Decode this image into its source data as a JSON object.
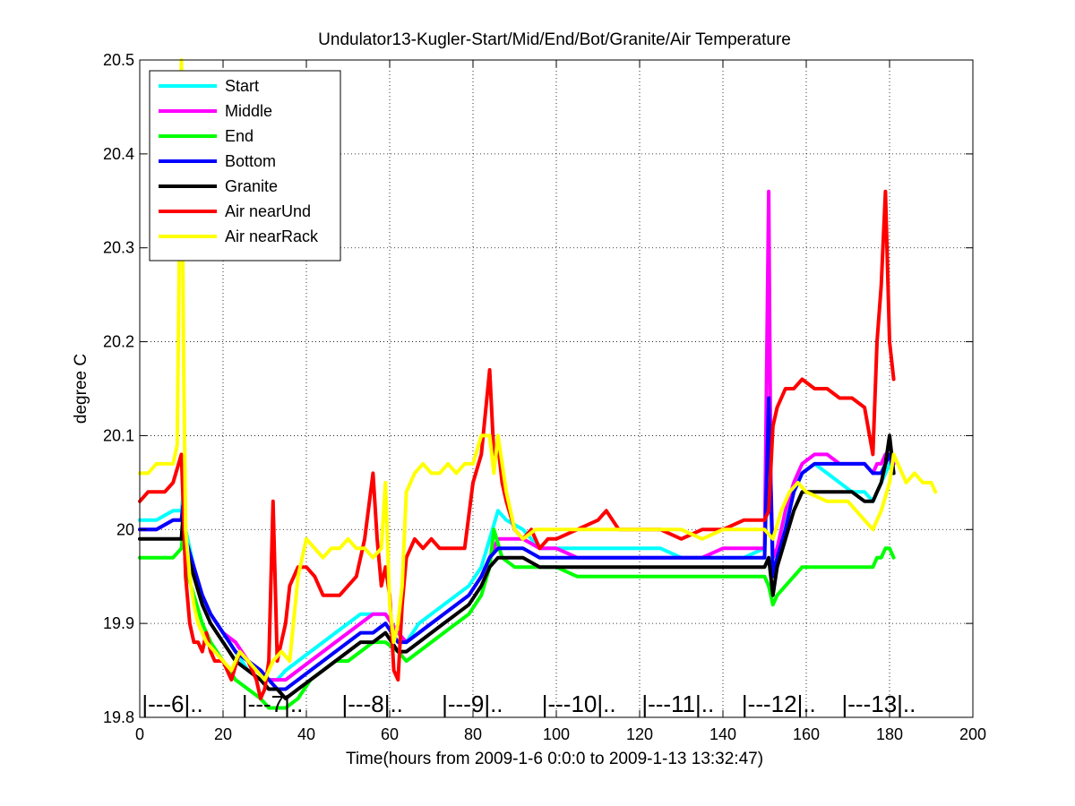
{
  "chart_data": {
    "type": "line",
    "title": "Undulator13-Kugler-Start/Mid/End/Bot/Granite/Air Temperature",
    "xlabel": "Time(hours from 2009-1-6 0:0:0 to 2009-1-13 13:32:47)",
    "ylabel": "degree C",
    "xlim": [
      0,
      200
    ],
    "ylim": [
      19.8,
      20.5
    ],
    "xticks": [
      "0",
      "20",
      "40",
      "60",
      "80",
      "100",
      "120",
      "140",
      "160",
      "180",
      "200"
    ],
    "yticks": [
      "19.8",
      "19.9",
      "20",
      "20.1",
      "20.2",
      "20.3",
      "20.4",
      "20.5"
    ],
    "grid": true,
    "legend_position": "top-left",
    "day_markers": [
      {
        "x": 0.5,
        "text": "|---6|.."
      },
      {
        "x": 24.5,
        "text": "|---7|.."
      },
      {
        "x": 48.5,
        "text": "|---8|.."
      },
      {
        "x": 72.5,
        "text": "|---9|.."
      },
      {
        "x": 96.5,
        "text": "|---10|.."
      },
      {
        "x": 120.5,
        "text": "|---11|.."
      },
      {
        "x": 144.5,
        "text": "|---12|.."
      },
      {
        "x": 168.5,
        "text": "|---13|.."
      }
    ],
    "series": [
      {
        "name": "Start",
        "color": "#00ffff",
        "x": [
          0,
          4,
          8,
          10,
          10.5,
          11,
          13,
          15,
          17,
          20,
          23,
          26,
          29,
          31,
          33,
          35,
          38,
          41,
          44,
          47,
          50,
          53,
          56,
          59,
          62,
          64,
          67,
          70,
          73,
          76,
          79,
          82,
          84,
          86,
          88,
          92,
          96,
          100,
          105,
          110,
          115,
          120,
          125,
          130,
          135,
          140,
          145,
          150,
          151,
          152,
          153,
          155,
          157,
          159,
          162,
          165,
          168,
          171,
          174,
          176,
          177,
          178,
          179,
          180,
          181
        ],
        "y": [
          20.01,
          20.01,
          20.02,
          20.02,
          20.04,
          20.0,
          19.96,
          19.93,
          19.91,
          19.89,
          19.87,
          19.85,
          19.84,
          19.84,
          19.84,
          19.85,
          19.86,
          19.87,
          19.88,
          19.89,
          19.9,
          19.91,
          19.91,
          19.91,
          19.89,
          19.88,
          19.9,
          19.91,
          19.92,
          19.93,
          19.94,
          19.96,
          19.99,
          20.02,
          20.01,
          20.0,
          19.98,
          19.98,
          19.98,
          19.98,
          19.98,
          19.98,
          19.98,
          19.97,
          19.97,
          19.97,
          19.97,
          19.98,
          20.1,
          19.97,
          19.98,
          20.01,
          20.04,
          20.06,
          20.07,
          20.06,
          20.05,
          20.04,
          20.04,
          20.03,
          20.04,
          20.05,
          20.06,
          20.07,
          20.06
        ]
      },
      {
        "name": "Middle",
        "color": "#ff00ff",
        "x": [
          0,
          4,
          8,
          10,
          10.5,
          11,
          13,
          15,
          17,
          20,
          23,
          26,
          29,
          31,
          33,
          35,
          38,
          41,
          44,
          47,
          50,
          53,
          56,
          59,
          62,
          64,
          67,
          70,
          73,
          76,
          79,
          82,
          84,
          86,
          88,
          92,
          96,
          100,
          105,
          110,
          115,
          120,
          125,
          130,
          135,
          140,
          145,
          150,
          151,
          151.5,
          152,
          153,
          155,
          157,
          159,
          162,
          165,
          168,
          171,
          174,
          176,
          177,
          178,
          179,
          180,
          181
        ],
        "y": [
          20.0,
          20.0,
          20.01,
          20.01,
          20.03,
          19.99,
          19.96,
          19.93,
          19.91,
          19.89,
          19.88,
          19.86,
          19.85,
          19.84,
          19.84,
          19.84,
          19.85,
          19.86,
          19.87,
          19.88,
          19.89,
          19.9,
          19.91,
          19.91,
          19.89,
          19.88,
          19.89,
          19.9,
          19.91,
          19.92,
          19.93,
          19.95,
          19.97,
          19.99,
          19.99,
          19.99,
          19.98,
          19.98,
          19.97,
          19.97,
          19.97,
          19.97,
          19.97,
          19.97,
          19.97,
          19.98,
          19.98,
          19.98,
          20.36,
          20.05,
          19.97,
          19.98,
          20.02,
          20.05,
          20.07,
          20.08,
          20.08,
          20.07,
          20.07,
          20.07,
          20.06,
          20.07,
          20.07,
          20.08,
          20.08,
          20.07
        ]
      },
      {
        "name": "End",
        "color": "#00ff00",
        "x": [
          0,
          4,
          8,
          10,
          10.5,
          11,
          13,
          15,
          17,
          20,
          23,
          26,
          29,
          31,
          33,
          35,
          38,
          41,
          44,
          47,
          50,
          53,
          56,
          59,
          62,
          64,
          67,
          70,
          73,
          76,
          79,
          82,
          84,
          85,
          87,
          90,
          95,
          100,
          105,
          110,
          115,
          120,
          125,
          130,
          135,
          140,
          145,
          150,
          151,
          152,
          153,
          155,
          157,
          159,
          162,
          165,
          168,
          171,
          174,
          176,
          177,
          178,
          179,
          180,
          181
        ],
        "y": [
          19.97,
          19.97,
          19.97,
          19.98,
          20.0,
          19.96,
          19.93,
          19.9,
          19.88,
          19.86,
          19.84,
          19.83,
          19.82,
          19.81,
          19.81,
          19.81,
          19.82,
          19.84,
          19.85,
          19.86,
          19.86,
          19.87,
          19.88,
          19.88,
          19.87,
          19.86,
          19.87,
          19.88,
          19.89,
          19.9,
          19.91,
          19.93,
          19.96,
          20.0,
          19.97,
          19.96,
          19.96,
          19.96,
          19.95,
          19.95,
          19.95,
          19.95,
          19.95,
          19.95,
          19.95,
          19.95,
          19.95,
          19.95,
          19.94,
          19.92,
          19.93,
          19.94,
          19.95,
          19.96,
          19.96,
          19.96,
          19.96,
          19.96,
          19.96,
          19.96,
          19.97,
          19.97,
          19.98,
          19.98,
          19.97
        ]
      },
      {
        "name": "Bottom",
        "color": "#0000ff",
        "x": [
          0,
          4,
          8,
          10,
          10.5,
          11,
          13,
          15,
          17,
          20,
          23,
          26,
          29,
          31,
          33,
          35,
          38,
          41,
          44,
          47,
          50,
          53,
          56,
          59,
          62,
          64,
          67,
          70,
          73,
          76,
          79,
          82,
          84,
          86,
          88,
          92,
          96,
          100,
          105,
          110,
          115,
          120,
          125,
          130,
          135,
          140,
          145,
          150,
          151,
          152,
          153,
          155,
          157,
          159,
          162,
          165,
          168,
          171,
          174,
          176,
          177,
          178,
          179,
          180,
          181
        ],
        "y": [
          20.0,
          20.0,
          20.01,
          20.01,
          20.03,
          19.99,
          19.96,
          19.93,
          19.91,
          19.89,
          19.87,
          19.86,
          19.85,
          19.84,
          19.83,
          19.83,
          19.84,
          19.85,
          19.86,
          19.87,
          19.88,
          19.89,
          19.89,
          19.9,
          19.88,
          19.88,
          19.89,
          19.9,
          19.91,
          19.92,
          19.93,
          19.95,
          19.97,
          19.98,
          19.98,
          19.98,
          19.97,
          19.97,
          19.97,
          19.97,
          19.97,
          19.97,
          19.97,
          19.97,
          19.97,
          19.97,
          19.97,
          19.97,
          20.14,
          19.95,
          19.97,
          20.0,
          20.04,
          20.06,
          20.07,
          20.07,
          20.07,
          20.07,
          20.07,
          20.06,
          20.06,
          20.06,
          20.07,
          20.08,
          20.06
        ]
      },
      {
        "name": "Granite",
        "color": "#000000",
        "x": [
          0,
          4,
          8,
          10,
          10.5,
          11,
          13,
          15,
          17,
          20,
          23,
          26,
          29,
          31,
          33,
          35,
          38,
          41,
          44,
          47,
          50,
          53,
          56,
          59,
          62,
          64,
          67,
          70,
          73,
          76,
          79,
          82,
          84,
          86,
          88,
          92,
          96,
          100,
          105,
          110,
          115,
          120,
          125,
          130,
          135,
          140,
          145,
          150,
          151,
          152,
          153,
          155,
          157,
          159,
          162,
          165,
          168,
          171,
          174,
          176,
          177,
          178,
          179,
          180,
          181
        ],
        "y": [
          19.99,
          19.99,
          19.99,
          19.99,
          20.02,
          19.98,
          19.95,
          19.92,
          19.9,
          19.88,
          19.86,
          19.85,
          19.84,
          19.83,
          19.83,
          19.82,
          19.83,
          19.84,
          19.85,
          19.86,
          19.87,
          19.88,
          19.88,
          19.89,
          19.87,
          19.87,
          19.88,
          19.89,
          19.9,
          19.91,
          19.92,
          19.94,
          19.96,
          19.97,
          19.97,
          19.97,
          19.96,
          19.96,
          19.96,
          19.96,
          19.96,
          19.96,
          19.96,
          19.96,
          19.96,
          19.96,
          19.96,
          19.96,
          19.97,
          19.93,
          19.96,
          19.99,
          20.02,
          20.04,
          20.04,
          20.04,
          20.04,
          20.04,
          20.03,
          20.03,
          20.04,
          20.05,
          20.07,
          20.1,
          20.06
        ]
      },
      {
        "name": "Air nearUnd",
        "color": "#ff0000",
        "x": [
          0,
          2,
          4,
          6,
          8,
          10,
          10.5,
          11,
          12,
          13,
          14,
          15,
          16,
          17,
          18,
          20,
          22,
          24,
          26,
          28,
          29,
          30,
          31,
          32,
          33,
          34,
          35,
          36,
          38,
          40,
          42,
          44,
          46,
          48,
          50,
          52,
          54,
          56,
          57,
          58,
          59,
          60,
          61,
          62,
          63,
          64,
          66,
          68,
          70,
          72,
          74,
          76,
          78,
          80,
          82,
          84,
          85,
          86,
          87,
          88,
          90,
          92,
          94,
          96,
          98,
          100,
          105,
          110,
          112,
          115,
          120,
          125,
          130,
          135,
          140,
          145,
          150,
          151,
          152,
          153,
          155,
          157,
          159,
          162,
          165,
          168,
          171,
          174,
          176,
          177,
          178,
          179,
          180,
          181
        ],
        "y": [
          20.03,
          20.04,
          20.04,
          20.04,
          20.05,
          20.08,
          20.02,
          19.95,
          19.9,
          19.88,
          19.88,
          19.87,
          19.89,
          19.87,
          19.86,
          19.86,
          19.84,
          19.87,
          19.86,
          19.84,
          19.82,
          19.83,
          19.86,
          20.03,
          19.86,
          19.88,
          19.9,
          19.94,
          19.96,
          19.96,
          19.95,
          19.93,
          19.93,
          19.93,
          19.94,
          19.95,
          19.99,
          20.06,
          19.99,
          19.94,
          19.96,
          19.93,
          19.85,
          19.84,
          19.92,
          19.97,
          19.99,
          19.98,
          19.99,
          19.98,
          19.98,
          19.98,
          19.98,
          20.05,
          20.08,
          20.17,
          20.08,
          20.09,
          20.05,
          20.03,
          20.0,
          19.99,
          20.0,
          19.98,
          19.99,
          19.99,
          20.0,
          20.01,
          20.02,
          20.0,
          20.0,
          20.0,
          19.99,
          20.0,
          20.0,
          20.01,
          20.01,
          20.02,
          20.11,
          20.13,
          20.15,
          20.15,
          20.16,
          20.15,
          20.15,
          20.14,
          20.14,
          20.13,
          20.08,
          20.2,
          20.26,
          20.36,
          20.2,
          20.16
        ]
      },
      {
        "name": "Air nearRack",
        "color": "#ffff00",
        "x": [
          0,
          2,
          4,
          6,
          8,
          9,
          10,
          10.5,
          11,
          12,
          13,
          14,
          16,
          18,
          20,
          22,
          24,
          26,
          28,
          30,
          32,
          34,
          36,
          38,
          40,
          42,
          44,
          46,
          48,
          50,
          52,
          54,
          56,
          58,
          59,
          60,
          61,
          62,
          63,
          64,
          66,
          68,
          70,
          72,
          74,
          76,
          78,
          80,
          82,
          84,
          85,
          86,
          88,
          90,
          92,
          95,
          100,
          105,
          110,
          115,
          120,
          125,
          130,
          135,
          140,
          145,
          150,
          152,
          154,
          156,
          158,
          160,
          165,
          170,
          174,
          176,
          178,
          180,
          181,
          182,
          184,
          186,
          188,
          190,
          191
        ],
        "y": [
          20.06,
          20.06,
          20.07,
          20.07,
          20.07,
          20.09,
          20.5,
          20.2,
          20.0,
          19.95,
          19.92,
          19.9,
          19.88,
          19.87,
          19.86,
          19.85,
          19.87,
          19.86,
          19.85,
          19.84,
          19.86,
          19.87,
          19.86,
          19.95,
          19.99,
          19.98,
          19.97,
          19.98,
          19.98,
          19.99,
          19.98,
          19.98,
          19.97,
          19.98,
          20.05,
          19.92,
          19.88,
          19.9,
          19.94,
          20.04,
          20.06,
          20.07,
          20.06,
          20.06,
          20.07,
          20.06,
          20.07,
          20.07,
          20.1,
          20.1,
          20.06,
          20.1,
          20.04,
          20.0,
          19.99,
          20.0,
          20.0,
          20.0,
          20.0,
          20.0,
          20.0,
          20.0,
          20.0,
          19.99,
          20.0,
          20.0,
          20.0,
          19.99,
          20.02,
          20.04,
          20.05,
          20.04,
          20.03,
          20.03,
          20.01,
          20.0,
          20.02,
          20.05,
          20.08,
          20.07,
          20.05,
          20.06,
          20.05,
          20.05,
          20.04
        ]
      }
    ]
  }
}
